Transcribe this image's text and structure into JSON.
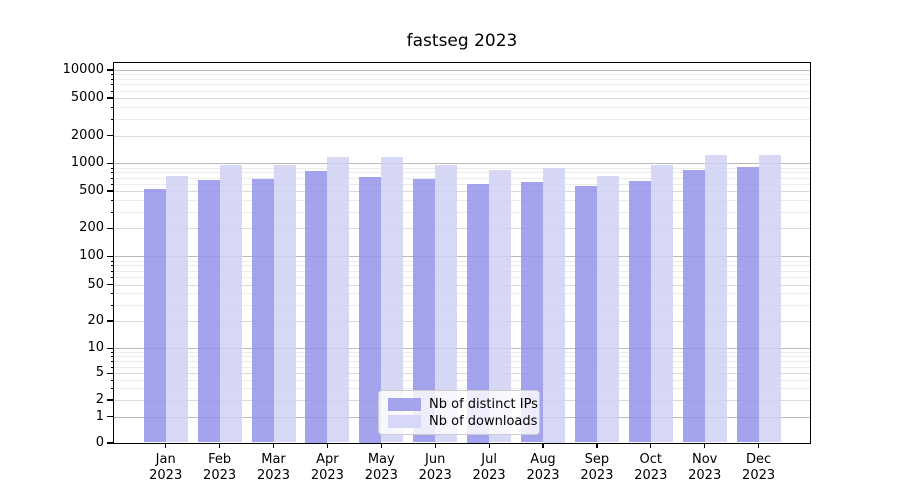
{
  "title": "fastseg 2023",
  "colors": {
    "ips_bar": "#a3a3ee",
    "downloads_bar": "#d7d7f7",
    "ips_bar_src": "#9393eb",
    "downloads_bar_src": "#d0d0f5",
    "grid_major": "#bbbbbb",
    "grid_minor": "#ececec",
    "axis": "#000000"
  },
  "legend": {
    "items": [
      {
        "label": "Nb of distinct IPs",
        "series": "ips"
      },
      {
        "label": "Nb of downloads",
        "series": "downloads"
      }
    ]
  },
  "y_axis": {
    "ticks": [
      {
        "label": "10000",
        "value": 10000
      },
      {
        "label": "5000",
        "value": 5000
      },
      {
        "label": "2000",
        "value": 2000
      },
      {
        "label": "1000",
        "value": 1000
      },
      {
        "label": "500",
        "value": 500
      },
      {
        "label": "200",
        "value": 200
      },
      {
        "label": "100",
        "value": 100
      },
      {
        "label": "50",
        "value": 50
      },
      {
        "label": "20",
        "value": 20
      },
      {
        "label": "10",
        "value": 10
      },
      {
        "label": "5",
        "value": 5
      },
      {
        "label": "2",
        "value": 2
      },
      {
        "label": "1",
        "value": 1
      },
      {
        "label": "0",
        "value": 0
      }
    ]
  },
  "x_axis": {
    "months": [
      "Jan",
      "Feb",
      "Mar",
      "Apr",
      "May",
      "Jun",
      "Jul",
      "Aug",
      "Sep",
      "Oct",
      "Nov",
      "Dec"
    ],
    "year": "2023"
  },
  "chart_data": {
    "type": "bar",
    "title": "fastseg 2023",
    "categories": [
      "Jan 2023",
      "Feb 2023",
      "Mar 2023",
      "Apr 2023",
      "May 2023",
      "Jun 2023",
      "Jul 2023",
      "Aug 2023",
      "Sep 2023",
      "Oct 2023",
      "Nov 2023",
      "Dec 2023"
    ],
    "series": [
      {
        "name": "Nb of distinct IPs",
        "values": [
          525,
          660,
          670,
          825,
          710,
          680,
          595,
          620,
          570,
          635,
          855,
          920
        ]
      },
      {
        "name": "Nb of downloads",
        "values": [
          735,
          965,
          950,
          1175,
          1160,
          960,
          850,
          890,
          735,
          950,
          1220,
          1240
        ]
      }
    ],
    "xlabel": "",
    "ylabel": "",
    "yscale": "symlog",
    "y_ticks": [
      0,
      1,
      2,
      5,
      10,
      20,
      50,
      100,
      200,
      500,
      1000,
      2000,
      5000,
      10000
    ],
    "ylim": [
      0,
      12000
    ],
    "grid": true,
    "legend_position": "lower center"
  }
}
